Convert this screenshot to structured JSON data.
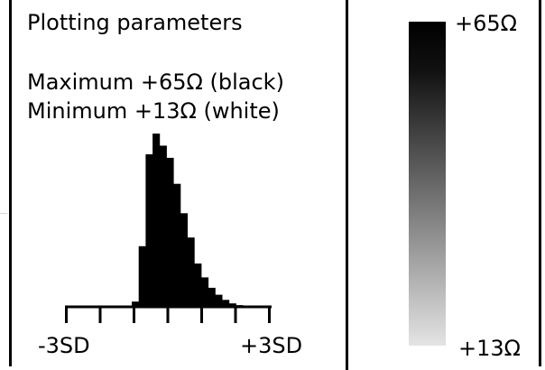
{
  "panel": {
    "title": "Plotting parameters",
    "maximum_label": "Maximum +65Ω (black)",
    "minimum_label": "Minimum +13Ω (white)"
  },
  "chart_data": [
    {
      "type": "bar",
      "title": "",
      "x_tick_labels": [
        "-3SD",
        "+3SD"
      ],
      "xlim": [
        -3,
        3
      ],
      "values": [
        0.03,
        0.35,
        0.88,
        1.0,
        0.93,
        0.86,
        0.71,
        0.54,
        0.4,
        0.25,
        0.17,
        0.11,
        0.07,
        0.04,
        0.02,
        0.01
      ]
    },
    {
      "type": "heatmap",
      "title": "",
      "max_label": "+65Ω",
      "min_label": "+13Ω",
      "range": [
        13,
        65
      ],
      "max_color": "#000000",
      "min_color": "#e4e4e4"
    }
  ]
}
